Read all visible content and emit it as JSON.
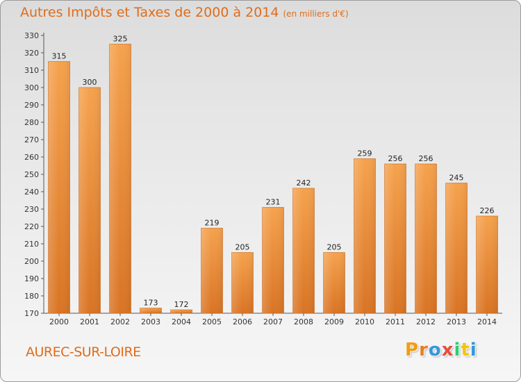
{
  "title": "Autres Impôts et Taxes de 2000 à 2014",
  "unit": "(en milliers d'€)",
  "commune": "AUREC-SUR-LOIRE",
  "logo": {
    "letters": [
      "P",
      "r",
      "o",
      "x",
      "i",
      "t",
      "i"
    ],
    "colors": [
      "#f39c12",
      "#e67e22",
      "#3498db",
      "#e74c3c",
      "#2ecc71",
      "#f1c40f",
      "#3498db"
    ]
  },
  "colors": {
    "accent": "#e06c1a",
    "bar_top": "#f5a24d",
    "bar_bottom": "#d97424"
  },
  "chart_data": {
    "type": "bar",
    "categories": [
      "2000",
      "2001",
      "2002",
      "2003",
      "2004",
      "2005",
      "2006",
      "2007",
      "2008",
      "2009",
      "2010",
      "2011",
      "2012",
      "2013",
      "2014"
    ],
    "values": [
      315,
      300,
      325,
      173,
      172,
      219,
      205,
      231,
      242,
      205,
      259,
      256,
      256,
      245,
      226
    ],
    "ylim": [
      170,
      330
    ],
    "yticks": [
      170,
      180,
      190,
      200,
      210,
      220,
      230,
      240,
      250,
      260,
      270,
      280,
      290,
      300,
      310,
      320,
      330
    ],
    "grid": false
  }
}
